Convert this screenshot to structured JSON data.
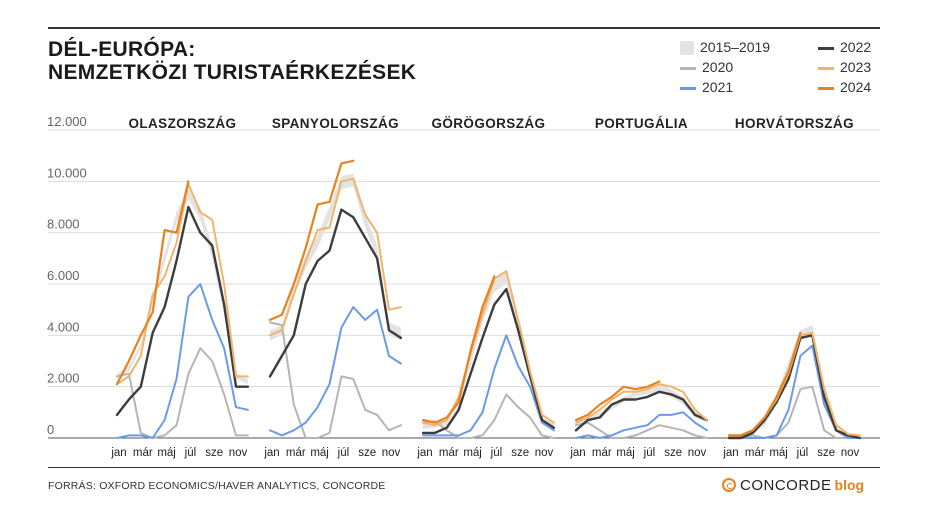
{
  "title_lines": [
    "DÉL-EURÓPA:",
    "NEMZETKÖZI TURISTAÉRKEZÉSEK"
  ],
  "legend": {
    "band": "2015–2019",
    "y2020": "2020",
    "y2021": "2021",
    "y2022": "2022",
    "y2023": "2023",
    "y2024": "2024"
  },
  "colors": {
    "band": "#e3e3e3",
    "y2020": "#b5b5b5",
    "y2021": "#6b9be8",
    "y2022": "#3d3d3d",
    "y2023": "#f0b46c",
    "y2024": "#e8821e"
  },
  "source": "FORRÁS: OXFORD ECONOMICS/HAVER ANALYTICS, CONCORDE",
  "brand": {
    "name": "CONCORDE",
    "suffix": "blog"
  },
  "chart_data": {
    "type": "line",
    "y_ticks": [
      "12.000",
      "10.000",
      "8.000",
      "6.000",
      "4.000",
      "2.000",
      "0"
    ],
    "ylim": [
      0,
      12000
    ],
    "x_tick_labels": [
      "jan",
      "már",
      "máj",
      "júl",
      "sze",
      "nov"
    ],
    "grid": true,
    "legend_position": "top-right",
    "panels": [
      {
        "name": "OLASZORSZÁG",
        "band_low": [
          2300,
          2600,
          3500,
          5200,
          6800,
          8400,
          9300,
          8500,
          7000,
          4800,
          2300,
          2100
        ],
        "band_high": [
          2500,
          2800,
          3700,
          5600,
          7200,
          8800,
          9700,
          9000,
          7500,
          5200,
          2500,
          2300
        ],
        "series": [
          {
            "name": "2020",
            "values": [
              2400,
              2500,
              200,
              0,
              100,
              500,
              2500,
              3500,
              3000,
              1700,
              100,
              100
            ]
          },
          {
            "name": "2021",
            "values": [
              0,
              100,
              100,
              0,
              700,
              2300,
              5500,
              6000,
              4600,
              3500,
              1200,
              1100
            ]
          },
          {
            "name": "2022",
            "values": [
              900,
              1500,
              2000,
              4100,
              5100,
              6900,
              9000,
              8000,
              7500,
              5200,
              2000,
              2000
            ]
          },
          {
            "name": "2023",
            "values": [
              2100,
              2400,
              3200,
              5600,
              6300,
              7600,
              9900,
              8800,
              8500,
              6000,
              2400,
              2400
            ]
          },
          {
            "name": "2024",
            "values": [
              2100,
              3000,
              4000,
              4900,
              8100,
              8000,
              10000
            ]
          }
        ]
      },
      {
        "name": "SPANYOLORSZÁG",
        "band_low": [
          3800,
          4000,
          5500,
          6600,
          7400,
          8500,
          9700,
          9800,
          8200,
          7000,
          4000,
          3800
        ],
        "band_high": [
          4200,
          4400,
          6000,
          7100,
          7900,
          9000,
          10200,
          10300,
          8700,
          7500,
          4500,
          4300
        ],
        "series": [
          {
            "name": "2020",
            "values": [
              4500,
              4400,
              1300,
              0,
              0,
              200,
              2400,
              2300,
              1100,
              900,
              300,
              500
            ]
          },
          {
            "name": "2021",
            "values": [
              300,
              100,
              300,
              600,
              1200,
              2100,
              4300,
              5100,
              4600,
              5000,
              3200,
              2900
            ]
          },
          {
            "name": "2022",
            "values": [
              2400,
              3200,
              4000,
              6000,
              6900,
              7300,
              8900,
              8600,
              7800,
              7000,
              4200,
              3900
            ]
          },
          {
            "name": "2023",
            "values": [
              4000,
              4200,
              5600,
              6900,
              8100,
              8200,
              10000,
              10100,
              8700,
              8000,
              5000,
              5100
            ]
          },
          {
            "name": "2024",
            "values": [
              4600,
              4800,
              6000,
              7400,
              9100,
              9200,
              10700,
              10800
            ]
          }
        ]
      },
      {
        "name": "GÖRÖGORSZÁG",
        "band_low": [
          350,
          400,
          500,
          1300,
          2800,
          4500,
          5700,
          6000,
          4300,
          2400,
          600,
          400
        ],
        "band_high": [
          550,
          600,
          750,
          1600,
          3200,
          4900,
          6100,
          6500,
          4700,
          2700,
          800,
          600
        ],
        "series": [
          {
            "name": "2020",
            "values": [
              600,
              650,
              300,
              0,
              0,
              100,
              700,
              1700,
              1200,
              800,
              100,
              0
            ]
          },
          {
            "name": "2021",
            "values": [
              100,
              100,
              100,
              100,
              300,
              1000,
              2700,
              4000,
              2800,
              2000,
              600,
              300
            ]
          },
          {
            "name": "2022",
            "values": [
              200,
              200,
              400,
              1100,
              2500,
              3900,
              5200,
              5800,
              4200,
              2400,
              700,
              400
            ]
          },
          {
            "name": "2023",
            "values": [
              600,
              500,
              700,
              1600,
              3300,
              4800,
              6200,
              6500,
              4600,
              2600,
              900,
              600
            ]
          },
          {
            "name": "2024",
            "values": [
              700,
              600,
              800,
              1400,
              3400,
              5100,
              6300
            ]
          }
        ]
      },
      {
        "name": "PORTUGÁLIA",
        "band_low": [
          500,
          600,
          800,
          1100,
          1400,
          1600,
          1700,
          1800,
          1600,
          1300,
          800,
          600
        ],
        "band_high": [
          700,
          800,
          1000,
          1300,
          1600,
          1800,
          2000,
          2100,
          1900,
          1600,
          1000,
          800
        ],
        "series": [
          {
            "name": "2020",
            "values": [
              500,
              600,
              300,
              0,
              0,
              100,
              300,
              500,
              400,
              300,
              100,
              0
            ]
          },
          {
            "name": "2021",
            "values": [
              0,
              100,
              0,
              100,
              300,
              400,
              500,
              900,
              900,
              1000,
              600,
              300
            ]
          },
          {
            "name": "2022",
            "values": [
              300,
              700,
              800,
              1300,
              1500,
              1500,
              1600,
              1800,
              1700,
              1500,
              900,
              700
            ]
          },
          {
            "name": "2023",
            "values": [
              600,
              800,
              1100,
              1500,
              1800,
              1800,
              1900,
              2100,
              2000,
              1800,
              1100,
              700
            ]
          },
          {
            "name": "2024",
            "values": [
              700,
              900,
              1300,
              1600,
              2000,
              1900,
              2000,
              2200
            ]
          }
        ]
      },
      {
        "name": "HORVÁTORSZÁG",
        "band_low": [
          0,
          50,
          150,
          500,
          1300,
          2600,
          3800,
          4000,
          1800,
          400,
          100,
          50
        ],
        "band_high": [
          100,
          150,
          300,
          750,
          1700,
          3000,
          4200,
          4400,
          2100,
          600,
          200,
          100
        ],
        "series": [
          {
            "name": "2020",
            "values": [
              0,
              0,
              100,
              0,
              100,
              600,
              1900,
              2000,
              300,
              0,
              0,
              0
            ]
          },
          {
            "name": "2021",
            "values": [
              0,
              0,
              0,
              0,
              100,
              1100,
              3200,
              3600,
              1300,
              300,
              0,
              0
            ]
          },
          {
            "name": "2022",
            "values": [
              0,
              0,
              200,
              700,
              1400,
              2300,
              3900,
              4000,
              1600,
              300,
              100,
              0
            ]
          },
          {
            "name": "2023",
            "values": [
              100,
              100,
              300,
              800,
              1500,
              2500,
              4000,
              4100,
              1900,
              500,
              150,
              100
            ]
          },
          {
            "name": "2024",
            "values": [
              100,
              100,
              300,
              800,
              1600,
              2600,
              4100
            ]
          }
        ]
      }
    ]
  }
}
